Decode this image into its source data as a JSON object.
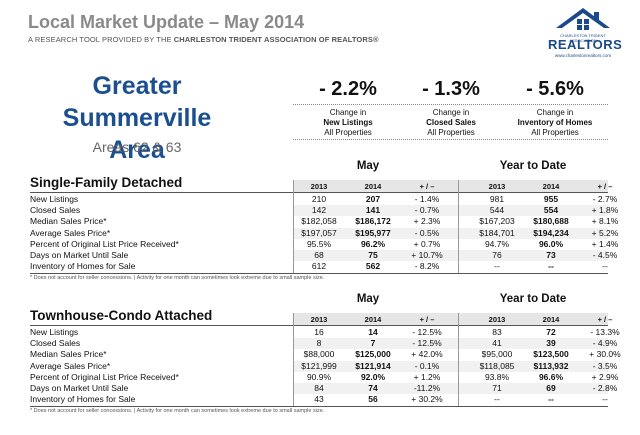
{
  "header": {
    "title": "Local Market Update – May 2014",
    "subtitle_pre": "A RESEARCH TOOL PROVIDED BY THE ",
    "subtitle_bold": "CHARLESTON TRIDENT ASSOCIATION OF REALTORS®"
  },
  "logo": {
    "small_text": "CHARLESTON TRIDENT ASSOCIATION",
    "name": "REALTORS",
    "url": "www.charlestonrealtors.com",
    "color": "#1a4a8a"
  },
  "area": {
    "title_line1": "Greater Summerville",
    "title_line2": "Area",
    "subtitle": "Areas 62 & 63"
  },
  "kpis": [
    {
      "value": "- 2.2%",
      "line1": "Change in",
      "line2": "New Listings",
      "line3": "All Properties"
    },
    {
      "value": "- 1.3%",
      "line1": "Change in",
      "line2": "Closed Sales",
      "line3": "All Properties"
    },
    {
      "value": "- 5.6%",
      "line1": "Change in",
      "line2": "Inventory of Homes",
      "line3": "All Properties"
    }
  ],
  "groups": {
    "month": "May",
    "ytd": "Year to Date"
  },
  "columns": [
    "2013",
    "2014",
    "+ / –",
    "2013",
    "2014",
    "+ / –"
  ],
  "sections": [
    {
      "title": "Single-Family Detached",
      "rows": [
        {
          "label": "New Listings",
          "v": [
            "210",
            "207",
            "- 1.4%",
            "981",
            "955",
            "- 2.7%"
          ]
        },
        {
          "label": "Closed Sales",
          "v": [
            "142",
            "141",
            "- 0.7%",
            "544",
            "554",
            "+ 1.8%"
          ]
        },
        {
          "label": "Median Sales Price*",
          "v": [
            "$182,058",
            "$186,172",
            "+ 2.3%",
            "$167,203",
            "$180,688",
            "+ 8.1%"
          ]
        },
        {
          "label": "Average Sales Price*",
          "v": [
            "$197,057",
            "$195,977",
            "- 0.5%",
            "$184,701",
            "$194,234",
            "+ 5.2%"
          ]
        },
        {
          "label": "Percent of Original List Price Received*",
          "v": [
            "95.5%",
            "96.2%",
            "+ 0.7%",
            "94.7%",
            "96.0%",
            "+ 1.4%"
          ]
        },
        {
          "label": "Days on Market Until Sale",
          "v": [
            "68",
            "75",
            "+ 10.7%",
            "76",
            "73",
            "- 4.5%"
          ]
        },
        {
          "label": "Inventory of Homes for Sale",
          "v": [
            "612",
            "562",
            "- 8.2%",
            "--",
            "--",
            "--"
          ]
        }
      ],
      "footnote": "* Does not account for seller concessions.  |  Activity for one month can sometimes look extreme due to small sample size."
    },
    {
      "title": "Townhouse-Condo Attached",
      "rows": [
        {
          "label": "New Listings",
          "v": [
            "16",
            "14",
            "- 12.5%",
            "83",
            "72",
            "- 13.3%"
          ]
        },
        {
          "label": "Closed Sales",
          "v": [
            "8",
            "7",
            "- 12.5%",
            "41",
            "39",
            "- 4.9%"
          ]
        },
        {
          "label": "Median Sales Price*",
          "v": [
            "$88,000",
            "$125,000",
            "+ 42.0%",
            "$95,000",
            "$123,500",
            "+ 30.0%"
          ]
        },
        {
          "label": "Average Sales Price*",
          "v": [
            "$121,999",
            "$121,914",
            "- 0.1%",
            "$118,085",
            "$113,932",
            "- 3.5%"
          ]
        },
        {
          "label": "Percent of Original List Price Received*",
          "v": [
            "90.9%",
            "92.0%",
            "+ 1.2%",
            "93.8%",
            "96.6%",
            "+ 2.9%"
          ]
        },
        {
          "label": "Days on Market Until Sale",
          "v": [
            "84",
            "74",
            "-11.2%",
            "71",
            "69",
            "- 2.8%"
          ]
        },
        {
          "label": "Inventory of Homes for Sale",
          "v": [
            "43",
            "56",
            "+ 30.2%",
            "--",
            "--",
            "--"
          ]
        }
      ],
      "footnote": "* Does not account for seller concessions.  |  Activity for one month can sometimes look extreme due to small sample size."
    }
  ]
}
